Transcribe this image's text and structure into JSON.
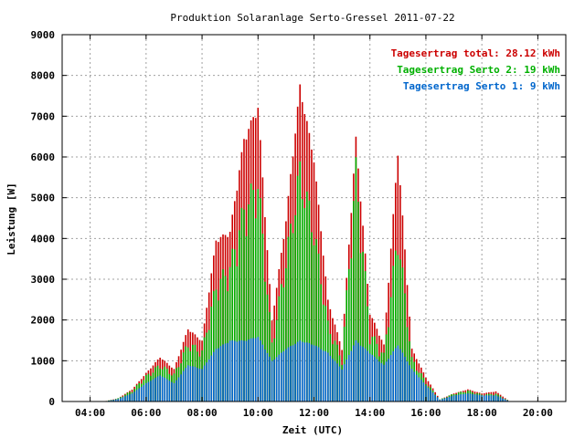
{
  "chart_data": {
    "type": "bar",
    "title": "Produktion Solaranlage Serto-Gressel 2011-07-22",
    "xlabel": "Zeit (UTC)",
    "ylabel": "Leistung [W]",
    "ylim": [
      0,
      9000
    ],
    "yticks": [
      0,
      1000,
      2000,
      3000,
      4000,
      5000,
      6000,
      7000,
      8000,
      9000
    ],
    "xlim_hours": [
      3.0,
      21.0
    ],
    "xticks": [
      {
        "hour": 4,
        "label": "04:00"
      },
      {
        "hour": 6,
        "label": "06:00"
      },
      {
        "hour": 8,
        "label": "08:00"
      },
      {
        "hour": 10,
        "label": "10:00"
      },
      {
        "hour": 12,
        "label": "12:00"
      },
      {
        "hour": 14,
        "label": "14:00"
      },
      {
        "hour": 16,
        "label": "16:00"
      },
      {
        "hour": 18,
        "label": "18:00"
      },
      {
        "hour": 20,
        "label": "20:00"
      }
    ],
    "grid": true,
    "legend_position": "top-right",
    "legend": [
      {
        "label": "Tagesertrag total: 28.12 kWh",
        "color": "#cc0000"
      },
      {
        "label": "Tagesertrag Serto 2: 19 kWh",
        "color": "#00b000"
      },
      {
        "label": "Tagesertrag Serto 1: 9 kWh",
        "color": "#0066cc"
      }
    ],
    "series_colors": {
      "total": "#cc0000",
      "serto2": "#00b000",
      "serto1": "#0066cc"
    },
    "keyframes_hours": [
      4.5,
      5.0,
      5.5,
      6.0,
      6.5,
      7.0,
      7.5,
      8.0,
      8.5,
      9.0,
      9.5,
      10.0,
      10.5,
      11.0,
      11.5,
      12.0,
      12.5,
      13.0,
      13.5,
      14.0,
      14.5,
      15.0,
      15.5,
      16.0,
      16.5,
      17.0,
      17.5,
      18.0,
      18.5,
      19.0
    ],
    "total_keyframes": [
      0,
      80,
      300,
      700,
      1100,
      800,
      1800,
      1500,
      4000,
      4200,
      6500,
      7300,
      2000,
      4500,
      7800,
      6000,
      2500,
      1300,
      6500,
      2200,
      1400,
      6200,
      1300,
      600,
      50,
      200,
      300,
      200,
      250,
      0
    ],
    "serto2_keyframes": [
      0,
      80,
      280,
      650,
      950,
      700,
      1500,
      1300,
      3000,
      3500,
      5000,
      5700,
      1500,
      3700,
      6000,
      4500,
      2000,
      1100,
      6000,
      1800,
      1200,
      4400,
      1100,
      500,
      50,
      200,
      280,
      180,
      200,
      0
    ],
    "serto1_keyframes": [
      0,
      60,
      200,
      450,
      650,
      450,
      900,
      800,
      1300,
      1500,
      1500,
      1600,
      1000,
      1300,
      1500,
      1400,
      1200,
      800,
      1500,
      1200,
      900,
      1400,
      800,
      400,
      40,
      150,
      200,
      150,
      150,
      0
    ]
  }
}
